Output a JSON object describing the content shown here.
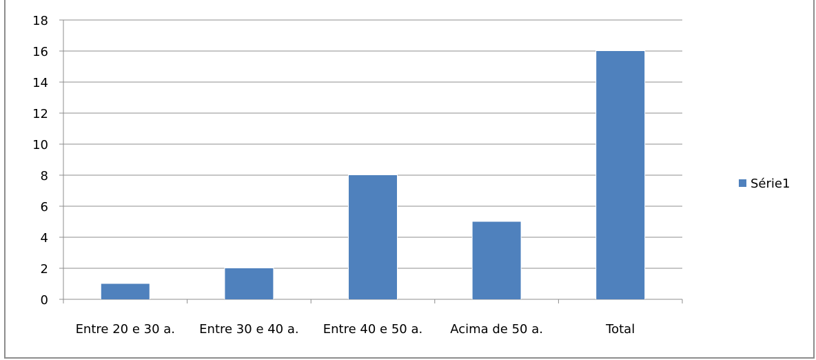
{
  "chart_data": {
    "type": "bar",
    "categories": [
      "Entre 20 e 30 a.",
      "Entre 30 e 40 a.",
      "Entre 40 e 50 a.",
      "Acima de 50 a.",
      "Total"
    ],
    "series": [
      {
        "name": "Série1",
        "values": [
          1,
          2,
          8,
          5,
          16
        ],
        "color": "#4f81bd"
      }
    ],
    "ylim": [
      0,
      18
    ],
    "yticks": [
      0,
      2,
      4,
      6,
      8,
      10,
      12,
      14,
      16,
      18
    ],
    "grid": true,
    "legend": "right"
  }
}
